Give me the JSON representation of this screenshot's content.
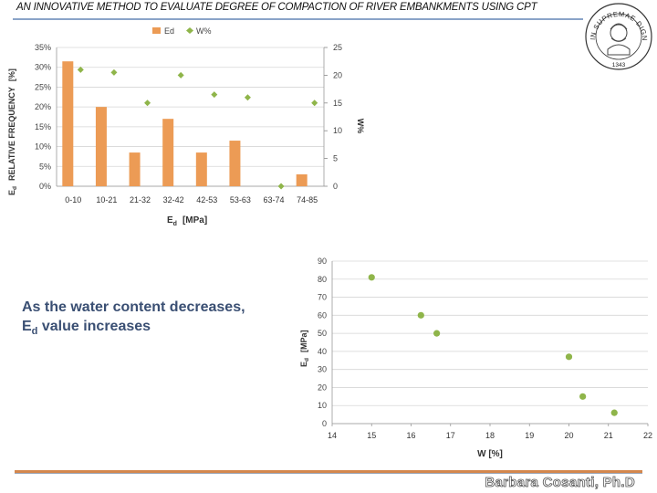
{
  "slide": {
    "title": "AN INNOVATIVE METHOD TO EVALUATE DEGREE OF COMPACTION OF RIVER EMBANKMENTS USING CPT",
    "statement_line1": "As the water content decreases,",
    "statement_line2_pre": "E",
    "statement_line2_sub": "d",
    "statement_line2_post": " value increases",
    "author": "Barbara Cosanti, Ph.D"
  },
  "seal": {
    "text": "IN SUPREMAE DIGNITATIS",
    "year": "1343"
  },
  "chart_data": [
    {
      "type": "bar",
      "categories": [
        "0-10",
        "10-21",
        "21-32",
        "32-42",
        "42-53",
        "53-63",
        "63-74",
        "74-85"
      ],
      "series": [
        {
          "name": "Ed",
          "values": [
            31.5,
            20,
            8.5,
            17,
            8.5,
            11.5,
            0,
            3
          ],
          "color": "#ec9b55"
        },
        {
          "name": "W%",
          "values": [
            21,
            20.5,
            15,
            20,
            16.5,
            16,
            0,
            15
          ],
          "color": "#8fb54a",
          "axis": "right"
        }
      ],
      "ylim": [
        0,
        35
      ],
      "y_ticks": [
        "0%",
        "5%",
        "10%",
        "15%",
        "20%",
        "25%",
        "30%",
        "35%"
      ],
      "y2lim": [
        0,
        25
      ],
      "y2_ticks": [
        "0",
        "5",
        "10",
        "15",
        "20",
        "25"
      ],
      "ylabel_main": "RELATIVE FREQUENCY",
      "ylabel_unit": "[%]",
      "ylabel_sym": "E",
      "ylabel_sub": "d",
      "y2label": "W%",
      "xlabel_sym": "E",
      "xlabel_sub": "d",
      "xlabel_unit": "[MPa]",
      "legend_position": "top",
      "grid": true
    },
    {
      "type": "scatter",
      "x": [
        15,
        16.25,
        16.65,
        20,
        20.35,
        21.15
      ],
      "y": [
        81,
        60,
        50,
        37,
        15,
        6
      ],
      "xlim": [
        14,
        22
      ],
      "ylim": [
        0,
        90
      ],
      "x_ticks": [
        "14",
        "15",
        "16",
        "17",
        "18",
        "19",
        "20",
        "21",
        "22"
      ],
      "y_ticks": [
        "0",
        "10",
        "20",
        "30",
        "40",
        "50",
        "60",
        "70",
        "80",
        "90"
      ],
      "xlabel": "W [%]",
      "ylabel_sym": "E",
      "ylabel_sub": "d",
      "ylabel_unit": "[MPa]",
      "color": "#8fb54a",
      "grid": true
    }
  ]
}
